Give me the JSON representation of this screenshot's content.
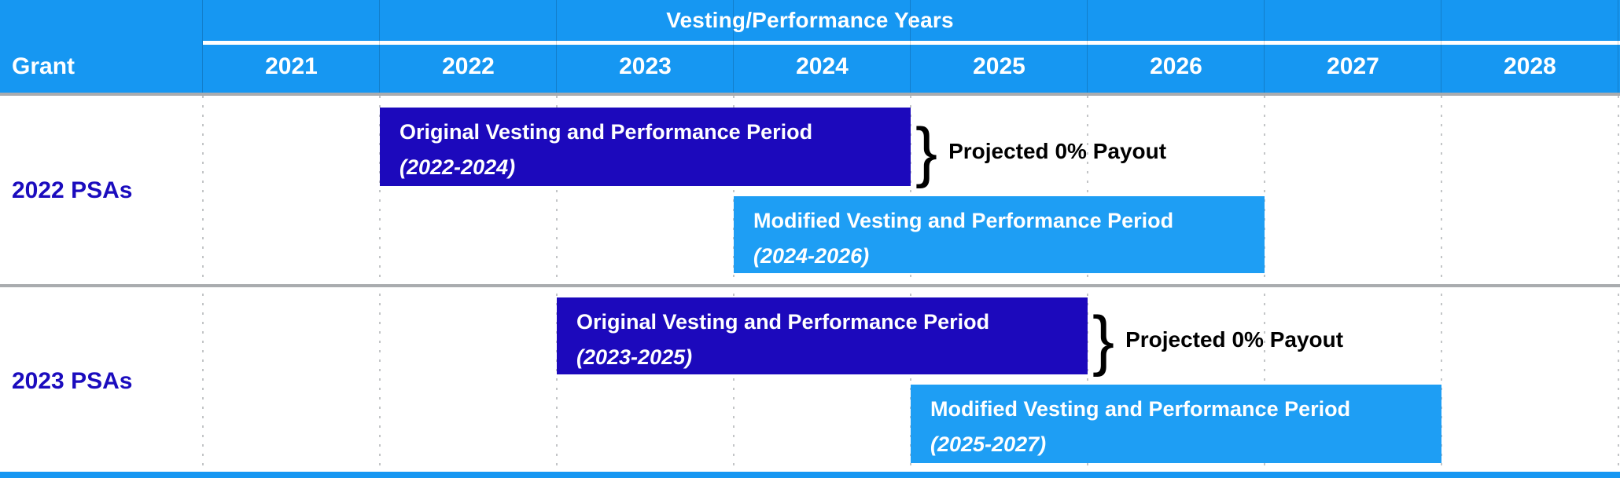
{
  "header": {
    "title": "Vesting/Performance Years",
    "grant_column_label": "Grant",
    "years": [
      "2021",
      "2022",
      "2023",
      "2024",
      "2025",
      "2026",
      "2027",
      "2028"
    ]
  },
  "rows": [
    {
      "label": "2022 PSAs",
      "original_bar": {
        "line1": "Original Vesting and Performance Period",
        "line2": "(2022-2024)"
      },
      "modified_bar": {
        "line1": "Modified Vesting and Performance Period",
        "line2": "(2024-2026)"
      },
      "brace": "}",
      "annotation": "Projected 0% Payout"
    },
    {
      "label": "2023 PSAs",
      "original_bar": {
        "line1": "Original Vesting and Performance Period",
        "line2": "(2023-2025)"
      },
      "modified_bar": {
        "line1": "Modified Vesting and Performance Period",
        "line2": "(2025-2027)"
      },
      "brace": "}",
      "annotation": "Projected 0% Payout"
    }
  ],
  "colors": {
    "azure_header": "#1697F2",
    "light_bar": "#1E9EF4",
    "dark_bar": "#1C09BC",
    "grant_label_text": "#1B0CBE",
    "divider_gray": "#A9ACAF",
    "gridline_gray": "#C3C5C7",
    "bar_text": "#FFFFFF",
    "annotation_text": "#000000"
  },
  "chart_data": {
    "type": "bar",
    "subtype": "gantt-timeline",
    "title": "Vesting/Performance Years",
    "xlabel": "Vesting/Performance Years",
    "ylabel": "Grant",
    "x_ticks": [
      2021,
      2022,
      2023,
      2024,
      2025,
      2026,
      2027,
      2028
    ],
    "x_range": [
      2021,
      2029
    ],
    "grid": "dotted-vertical",
    "legend": "none",
    "rows": [
      {
        "grant": "2022 PSAs",
        "bars": [
          {
            "label": "Original Vesting and Performance Period (2022-2024)",
            "start_year": 2022,
            "end_year": 2024,
            "style": "dark-blue",
            "annotation": "Projected 0% Payout"
          },
          {
            "label": "Modified Vesting and Performance Period (2024-2026)",
            "start_year": 2024,
            "end_year": 2026,
            "style": "light-blue"
          }
        ]
      },
      {
        "grant": "2023 PSAs",
        "bars": [
          {
            "label": "Original Vesting and Performance Period (2023-2025)",
            "start_year": 2023,
            "end_year": 2025,
            "style": "dark-blue",
            "annotation": "Projected 0% Payout"
          },
          {
            "label": "Modified Vesting and Performance Period (2025-2027)",
            "start_year": 2025,
            "end_year": 2027,
            "style": "light-blue"
          }
        ]
      }
    ]
  }
}
